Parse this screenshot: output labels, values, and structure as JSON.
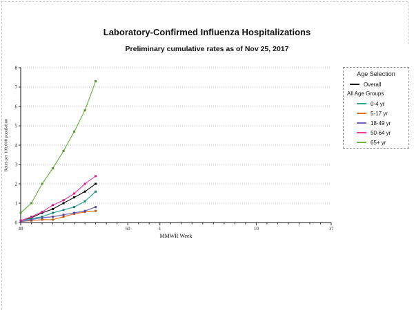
{
  "page": {
    "title": "Laboratory-Confirmed Influenza Hospitalizations",
    "subtitle": "Preliminary cumulative rates as of Nov 25, 2017"
  },
  "legend": {
    "title": "Age Selection",
    "group_label": "All Age Groups"
  },
  "chart_data": {
    "type": "line",
    "title": "Laboratory-Confirmed Influenza Hospitalizations",
    "subtitle": "Preliminary cumulative rates as of Nov 25, 2017",
    "xlabel": "MMWR Week",
    "ylabel": "Rates per 100,000 population",
    "ylim": [
      0,
      8
    ],
    "yticks": [
      0,
      1,
      2,
      3,
      4,
      5,
      6,
      7,
      8
    ],
    "grid": "horizontal-dotted",
    "legend_position": "right",
    "x_weeks": [
      40,
      41,
      42,
      43,
      44,
      45,
      46,
      47,
      48,
      49,
      50,
      51,
      52,
      1,
      2,
      3,
      4,
      5,
      6,
      7,
      8,
      9,
      10,
      11,
      12,
      13,
      14,
      15,
      16,
      17
    ],
    "xticks": [
      40,
      50,
      1,
      10,
      17
    ],
    "data_weeks": [
      40,
      41,
      42,
      43,
      44,
      45,
      46,
      47
    ],
    "series": [
      {
        "name": "Overall",
        "color": "#1a1a1a",
        "marker": "#000000",
        "values": [
          0.1,
          0.25,
          0.5,
          0.7,
          1.0,
          1.3,
          1.6,
          2.0
        ]
      },
      {
        "name": "0-4 yr",
        "color": "#2aa491",
        "marker": "#1d8274",
        "values": [
          0.1,
          0.2,
          0.3,
          0.5,
          0.65,
          0.8,
          1.1,
          1.6
        ]
      },
      {
        "name": "5-17 yr",
        "color": "#e2711d",
        "marker": "#bd5a10",
        "values": [
          0.05,
          0.1,
          0.15,
          0.15,
          0.3,
          0.45,
          0.55,
          0.6
        ]
      },
      {
        "name": "18-49 yr",
        "color": "#6b64b8",
        "marker": "#514a99",
        "values": [
          0.05,
          0.15,
          0.25,
          0.3,
          0.4,
          0.5,
          0.6,
          0.8
        ]
      },
      {
        "name": "50-64 yr",
        "color": "#ee3fa4",
        "marker": "#c9217f",
        "values": [
          0.1,
          0.3,
          0.55,
          0.9,
          1.15,
          1.5,
          2.0,
          2.4
        ]
      },
      {
        "name": "65+ yr",
        "color": "#6fb344",
        "marker": "#559330",
        "values": [
          0.5,
          1.0,
          2.0,
          2.8,
          3.7,
          4.7,
          5.8,
          7.3
        ]
      }
    ]
  }
}
